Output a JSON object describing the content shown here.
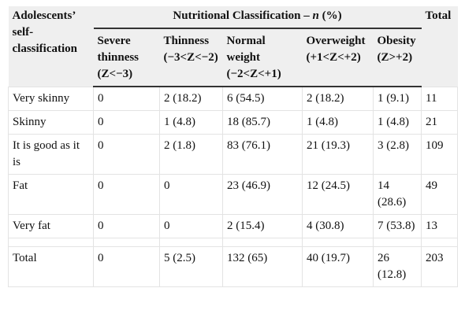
{
  "table": {
    "stub_header": "Adolescents’ self-classification",
    "group_header": {
      "prefix": "Nutritional Classification – ",
      "italic": "n",
      "suffix": " (%)"
    },
    "total_header": "Total",
    "columns": [
      "Severe thinness (Z<−3)",
      "Thinness (−3<Z<−2)",
      "Normal weight (−2<Z<+1)",
      "Overweight (+1<Z<+2)",
      "Obesity (Z>+2)"
    ],
    "rows": [
      {
        "label": "Very skinny",
        "cells": [
          "0",
          "2 (18.2)",
          "6 (54.5)",
          "2 (18.2)",
          "1 (9.1)"
        ],
        "total": "11"
      },
      {
        "label": "Skinny",
        "cells": [
          "0",
          "1 (4.8)",
          "18 (85.7)",
          "1 (4.8)",
          "1 (4.8)"
        ],
        "total": "21"
      },
      {
        "label": "It is good as it is",
        "cells": [
          "0",
          "2 (1.8)",
          "83 (76.1)",
          "21 (19.3)",
          "3 (2.8)"
        ],
        "total": "109"
      },
      {
        "label": "Fat",
        "cells": [
          "0",
          "0",
          "23 (46.9)",
          "12 (24.5)",
          "14 (28.6)"
        ],
        "total": "49"
      },
      {
        "label": "Very fat",
        "cells": [
          "0",
          "0",
          "2 (15.4)",
          "4 (30.8)",
          "7 (53.8)"
        ],
        "total": "13"
      }
    ],
    "total_row": {
      "label": "Total",
      "cells": [
        "0",
        "5 (2.5)",
        "132 (65)",
        "40 (19.7)",
        "26 (12.8)"
      ],
      "total": "203"
    }
  }
}
